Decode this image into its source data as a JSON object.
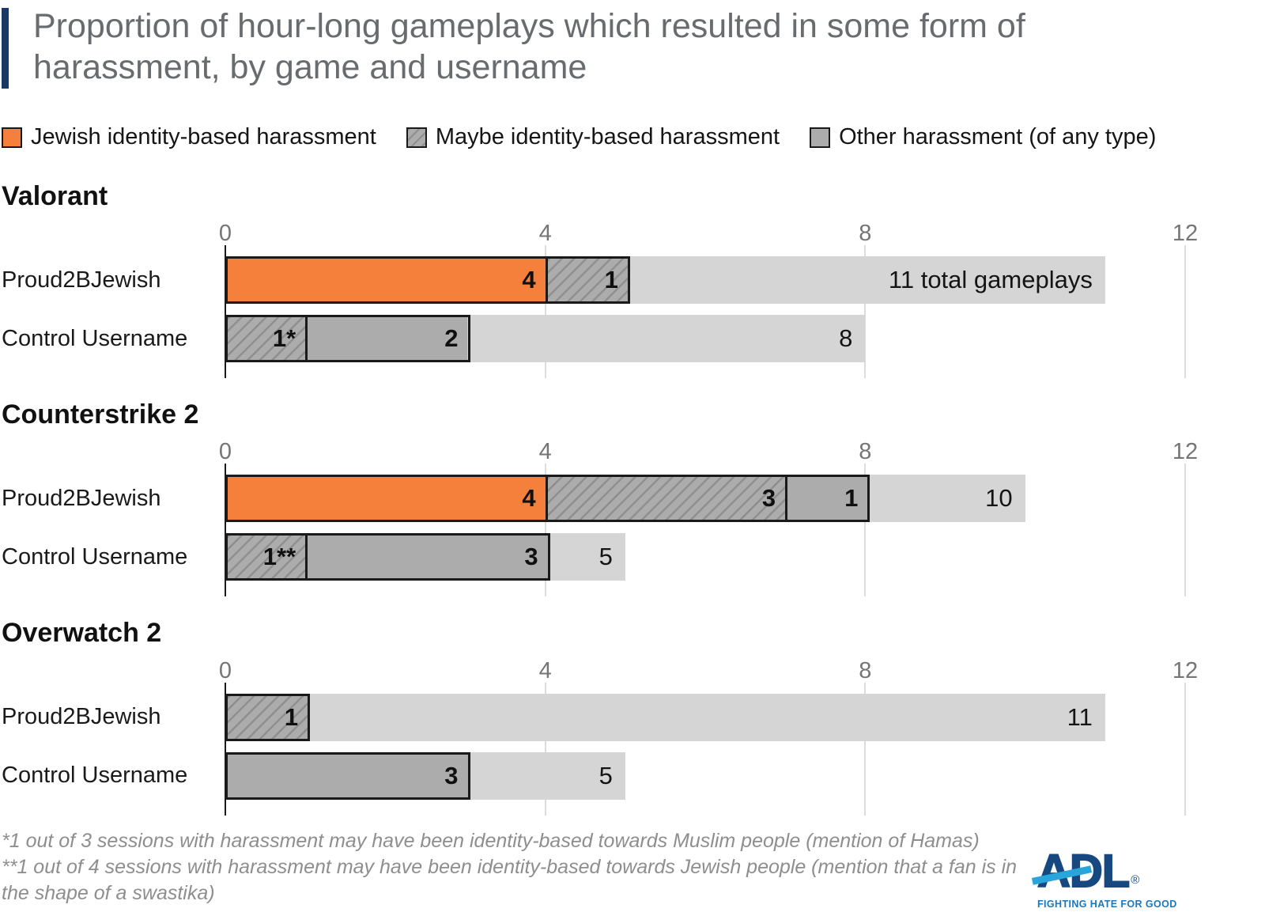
{
  "title": "Proportion of hour-long gameplays which resulted in some form of harassment, by game and username",
  "chart_data": {
    "type": "bar",
    "orientation": "horizontal",
    "stacked": true,
    "xlim": [
      0,
      12
    ],
    "x_ticks": [
      0,
      4,
      8,
      12
    ],
    "grid": true,
    "legend_position": "top",
    "unit": "gameplay sessions",
    "legend": [
      {
        "key": "jewish",
        "label": "Jewish identity-based harassment"
      },
      {
        "key": "maybe",
        "label": "Maybe identity-based harassment"
      },
      {
        "key": "other",
        "label": "Other harassment (of any type)"
      }
    ],
    "sections": [
      {
        "game": "Valorant",
        "rows": [
          {
            "label": "Proud2BJewish",
            "total": 11,
            "total_label": "11 total gameplays",
            "segments": [
              {
                "type": "jewish",
                "value": 4,
                "label": "4"
              },
              {
                "type": "maybe",
                "value": 1,
                "label": "1"
              }
            ]
          },
          {
            "label": "Control Username",
            "total": 8,
            "total_label": "8",
            "segments": [
              {
                "type": "maybe",
                "value": 1,
                "label": "1*"
              },
              {
                "type": "other",
                "value": 2,
                "label": "2"
              }
            ]
          }
        ]
      },
      {
        "game": "Counterstrike 2",
        "rows": [
          {
            "label": "Proud2BJewish",
            "total": 10,
            "total_label": "10",
            "segments": [
              {
                "type": "jewish",
                "value": 4,
                "label": "4"
              },
              {
                "type": "maybe",
                "value": 3,
                "label": "3"
              },
              {
                "type": "other",
                "value": 1,
                "label": "1"
              }
            ]
          },
          {
            "label": "Control Username",
            "total": 5,
            "total_label": "5",
            "segments": [
              {
                "type": "maybe",
                "value": 1,
                "label": "1**"
              },
              {
                "type": "other",
                "value": 3,
                "label": "3"
              }
            ]
          }
        ]
      },
      {
        "game": "Overwatch 2",
        "rows": [
          {
            "label": "Proud2BJewish",
            "total": 11,
            "total_label": "11",
            "segments": [
              {
                "type": "maybe",
                "value": 1,
                "label": "1"
              }
            ]
          },
          {
            "label": "Control Username",
            "total": 5,
            "total_label": "5",
            "segments": [
              {
                "type": "other",
                "value": 3,
                "label": "3"
              }
            ]
          }
        ]
      }
    ]
  },
  "footnotes": [
    "*1 out of 3 sessions with harassment may have been identity-based towards Muslim people (mention of Hamas)",
    "**1 out of 4 sessions with harassment may have been identity-based towards Jewish people (mention that a fan is in the shape of a swastika)"
  ],
  "branding": {
    "logo_text": "ADL",
    "registered_mark": "®",
    "tagline": "FIGHTING HATE FOR GOOD"
  },
  "colors": {
    "jewish_orange": "#F4803C",
    "bar_gray": "#ACACAC",
    "hatch_line": "#8F8F8F",
    "remainder_gray": "#D5D5D5",
    "ink": "#1A1A1A",
    "title_gray": "#696C6E",
    "accent_navy": "#1B3864",
    "tick_gray": "#757575",
    "gridline_gray": "#DCDCDC",
    "footnote_gray": "#8E8E8E",
    "adl_navy": "#174980",
    "adl_light_blue": "#29A5DC",
    "adl_blue": "#1B77BD"
  }
}
